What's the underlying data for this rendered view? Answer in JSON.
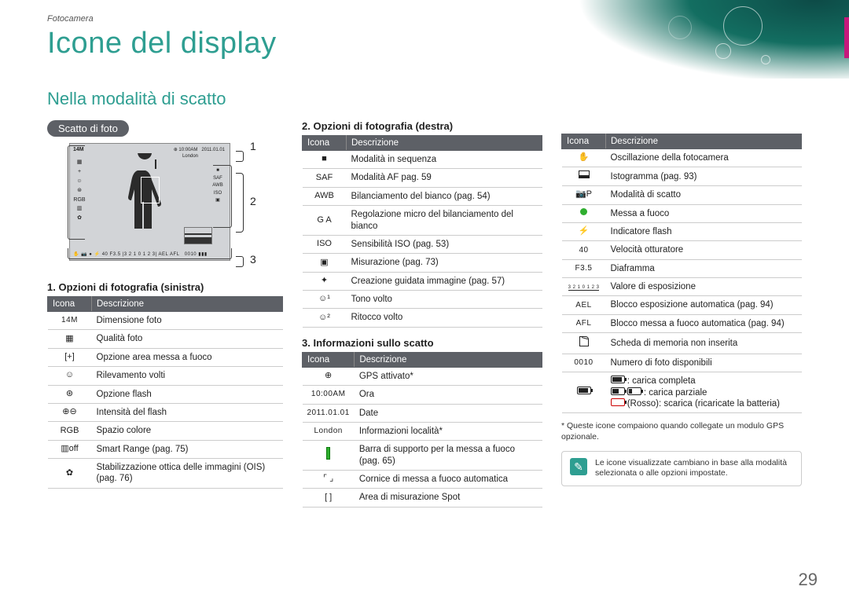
{
  "breadcrumb": "Fotocamera",
  "title": "Icone del display",
  "subtitle": "Nella modalità di scatto",
  "pill": "Scatto di foto",
  "markers": {
    "m1": "1",
    "m2": "2",
    "m3": "3"
  },
  "section1": {
    "label": "1. Opzioni di fotografia (sinistra)",
    "th1": "Icona",
    "th2": "Descrizione",
    "rows": [
      {
        "ic": "14M",
        "txt": "Dimensione foto"
      },
      {
        "ic": "▦",
        "txt": "Qualità foto"
      },
      {
        "ic": "[+]",
        "txt": "Opzione area messa a fuoco"
      },
      {
        "ic": "☺",
        "txt": "Rilevamento volti"
      },
      {
        "ic": "⊛",
        "txt": "Opzione flash"
      },
      {
        "ic": "⊕⊖",
        "txt": "Intensità del flash"
      },
      {
        "ic": "RGB",
        "txt": "Spazio colore"
      },
      {
        "ic": "▥off",
        "txt": "Smart Range (pag. 75)"
      },
      {
        "ic": "✿",
        "txt": "Stabilizzazione ottica delle immagini (OIS) (pag. 76)"
      }
    ]
  },
  "section2": {
    "label": "2. Opzioni di fotografia (destra)",
    "th1": "Icona",
    "th2": "Descrizione",
    "rows": [
      {
        "ic": "■",
        "txt": "Modalità in sequenza"
      },
      {
        "ic": "SAF",
        "txt": "Modalità AF pag. 59"
      },
      {
        "ic": "AWB",
        "txt": "Bilanciamento del bianco (pag. 54)"
      },
      {
        "ic": "G A",
        "txt": "Regolazione micro del bilanciamento del bianco"
      },
      {
        "ic": "ISO",
        "txt": "Sensibilità ISO (pag. 53)"
      },
      {
        "ic": "▣",
        "txt": "Misurazione (pag. 73)"
      },
      {
        "ic": "✦",
        "txt": "Creazione guidata immagine (pag. 57)"
      },
      {
        "ic": "☺¹",
        "txt": "Tono volto"
      },
      {
        "ic": "☺²",
        "txt": "Ritocco volto"
      }
    ]
  },
  "section3": {
    "label": "3. Informazioni sullo scatto",
    "th1": "Icona",
    "th2": "Descrizione",
    "rows": [
      {
        "ic": "⊕",
        "txt": "GPS attivato*"
      },
      {
        "ic": "10:00AM",
        "txt": "Ora"
      },
      {
        "ic": "2011.01.01",
        "txt": "Date"
      },
      {
        "ic": "London",
        "txt": "Informazioni località*"
      },
      {
        "ic": "▮",
        "txt": "Barra di supporto per la messa a fuoco (pag. 65)"
      },
      {
        "ic": "⌜ ⌟",
        "txt": "Cornice di messa a fuoco automatica"
      },
      {
        "ic": "[ ]",
        "txt": "Area di misurazione Spot"
      }
    ]
  },
  "section4": {
    "th1": "Icona",
    "th2": "Descrizione",
    "rows": [
      {
        "ic": "✋",
        "txt": "Oscillazione della fotocamera"
      },
      {
        "ic": "HIST",
        "txt": "Istogramma (pag. 93)"
      },
      {
        "ic": "📷P",
        "txt": "Modalità di scatto"
      },
      {
        "ic": "DOT",
        "txt": "Messa a fuoco"
      },
      {
        "ic": "⚡",
        "txt": "Indicatore flash"
      },
      {
        "ic": "40",
        "txt": "Velocità otturatore"
      },
      {
        "ic": "F3.5",
        "txt": "Diaframma"
      },
      {
        "ic": "[3210123]",
        "txt": "Valore di esposizione"
      },
      {
        "ic": "AEL",
        "txt": "Blocco esposizione automatica (pag. 94)"
      },
      {
        "ic": "AFL",
        "txt": "Blocco messa a fuoco automatica (pag. 94)"
      },
      {
        "ic": "SD",
        "txt": "Scheda di memoria non inserita"
      },
      {
        "ic": "0010",
        "txt": "Numero di foto disponibili"
      },
      {
        "ic": "BATT",
        "txt": "BATT_DESC"
      }
    ],
    "batt_lines": {
      "l1": ": carica completa",
      "l2": ": carica parziale",
      "l3": "(Rosso): scarica (ricaricate la batteria)"
    }
  },
  "footnote": "* Queste icone compaiono quando collegate un modulo GPS opzionale.",
  "note": "Le icone visualizzate cambiano in base alla modalità selezionata o alle opzioni impostate.",
  "page_num": "29",
  "colors": {
    "teal": "#2e9e91",
    "header_gray": "#5d6066",
    "accent": "#c5187b"
  }
}
